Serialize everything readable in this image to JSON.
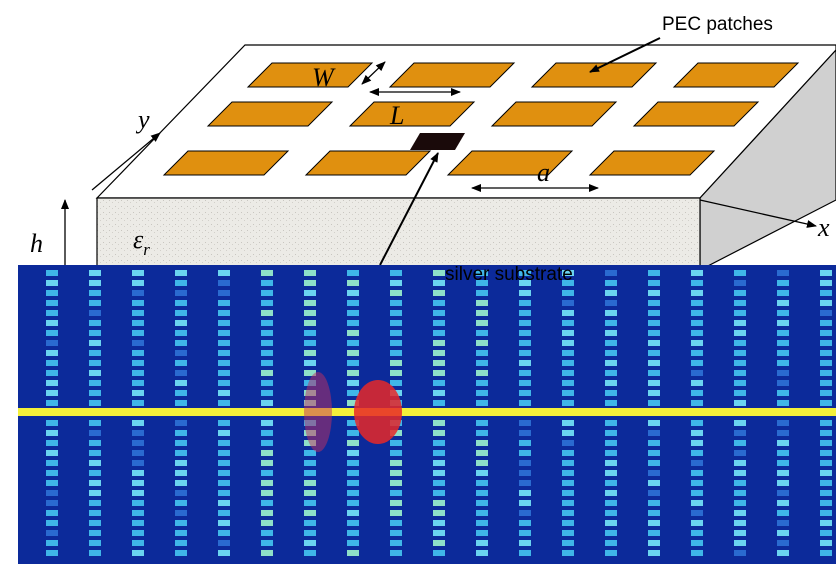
{
  "labels": {
    "pec": "PEC patches",
    "w": "W",
    "l": "L",
    "y": "y",
    "a": "a",
    "x": "x",
    "h": "h",
    "eps": "ε",
    "eps_sub": "r",
    "substrate": "silver substrate"
  }
}
